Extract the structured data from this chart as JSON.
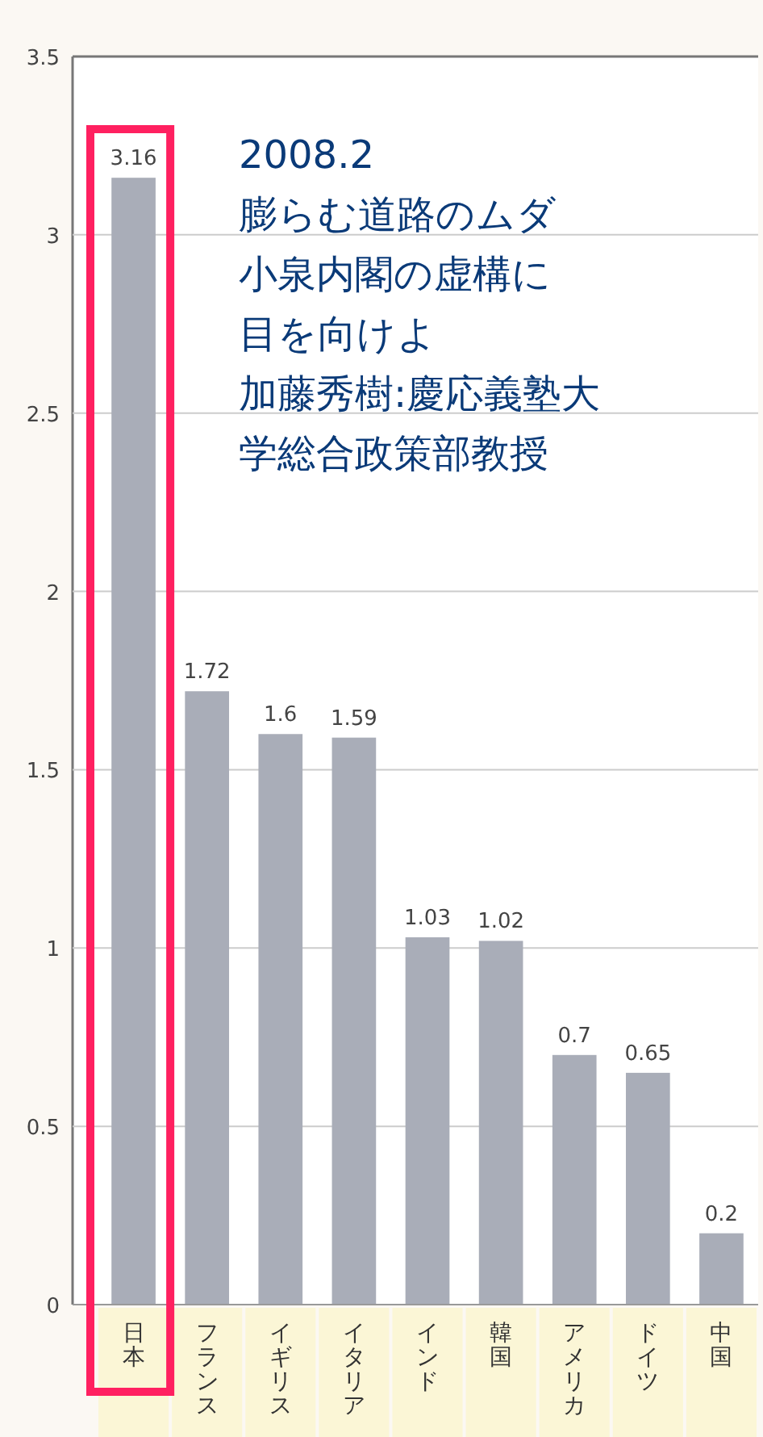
{
  "chart_data": {
    "type": "bar",
    "categories": [
      "日本",
      "フランス",
      "イギリス",
      "イタリア",
      "インド",
      "韓国",
      "アメリカ",
      "ドイツ",
      "中国"
    ],
    "values": [
      3.16,
      1.72,
      1.6,
      1.59,
      1.03,
      1.02,
      0.7,
      0.65,
      0.2
    ],
    "color": "#a9adb8",
    "ylim": [
      0,
      3.5
    ],
    "yticks": [
      0,
      0.5,
      1,
      1.5,
      2,
      2.5,
      3,
      3.5
    ],
    "grid": "y",
    "data_labels": true,
    "annotations": [
      "2008.2",
      "膨らむ道路のムダ",
      "小泉内閣の虚構に",
      "目を向けよ",
      "加藤秀樹:慶応義塾大",
      "学総合政策部教授"
    ]
  }
}
